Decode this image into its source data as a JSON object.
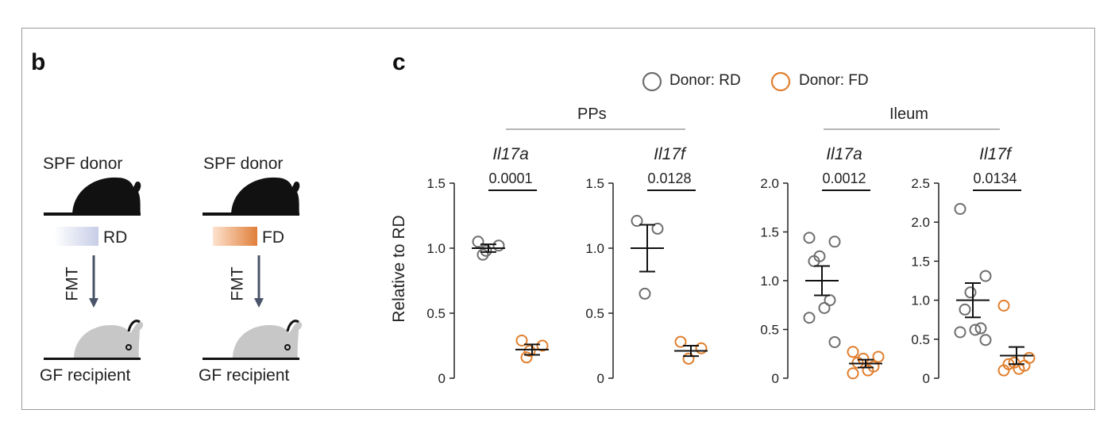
{
  "panel_b": {
    "letter": "b",
    "columns": [
      {
        "donor": "SPF donor",
        "diet": "RD",
        "diet_color": "#c7cde6",
        "transfer": "FMT",
        "recipient": "GF recipient"
      },
      {
        "donor": "SPF donor",
        "diet": "FD",
        "diet_color": "#e07f3a",
        "transfer": "FMT",
        "recipient": "GF recipient"
      }
    ]
  },
  "panel_c": {
    "letter": "c",
    "legend": [
      {
        "label": "Donor: RD",
        "color": "#6e6e6e"
      },
      {
        "label": "Donor: FD",
        "color": "#e07f2e"
      }
    ],
    "groups": [
      {
        "title": "PPs"
      },
      {
        "title": "Ileum"
      }
    ],
    "ylabel": "Relative to RD"
  },
  "chart_data": [
    {
      "type": "scatter",
      "group": "PPs",
      "title": "Il17a",
      "ylabel": "Relative to RD",
      "ylim": [
        0,
        1.5
      ],
      "yticks": [
        "0",
        "0.5",
        "1.0",
        "1.5"
      ],
      "pvalue": "0.0001",
      "series": [
        {
          "name": "Donor: RD",
          "points": [
            1.05,
            1.02,
            0.98,
            0.95
          ],
          "mean": 1.0,
          "sem": 0.03
        },
        {
          "name": "Donor: FD",
          "points": [
            0.29,
            0.25,
            0.21,
            0.16
          ],
          "mean": 0.22,
          "sem": 0.04
        }
      ]
    },
    {
      "type": "scatter",
      "group": "PPs",
      "title": "Il17f",
      "ylim": [
        0,
        1.5
      ],
      "yticks": [
        "0",
        "0.5",
        "1.0",
        "1.5"
      ],
      "pvalue": "0.0128",
      "series": [
        {
          "name": "Donor: RD",
          "points": [
            1.21,
            1.15,
            0.65
          ],
          "mean": 1.0,
          "sem": 0.18
        },
        {
          "name": "Donor: FD",
          "points": [
            0.28,
            0.23,
            0.15
          ],
          "mean": 0.21,
          "sem": 0.04
        }
      ]
    },
    {
      "type": "scatter",
      "group": "Ileum",
      "title": "Il17a",
      "ylim": [
        0,
        2.0
      ],
      "yticks": [
        "0",
        "0.5",
        "1.0",
        "1.5",
        "2.0"
      ],
      "pvalue": "0.0012",
      "series": [
        {
          "name": "Donor: RD",
          "points": [
            1.44,
            1.4,
            1.25,
            1.2,
            0.8,
            0.72,
            0.62,
            0.37
          ],
          "mean": 1.0,
          "sem": 0.15
        },
        {
          "name": "Donor: FD",
          "points": [
            0.27,
            0.22,
            0.2,
            0.16,
            0.12,
            0.08,
            0.05
          ],
          "mean": 0.15,
          "sem": 0.04
        }
      ]
    },
    {
      "type": "scatter",
      "group": "Ileum",
      "title": "Il17f",
      "ylim": [
        0,
        2.5
      ],
      "yticks": [
        "0",
        "0.5",
        "1.0",
        "1.5",
        "2.0",
        "2.5"
      ],
      "pvalue": "0.0134",
      "series": [
        {
          "name": "Donor: RD",
          "points": [
            2.17,
            1.31,
            1.1,
            0.88,
            0.64,
            0.62,
            0.59,
            0.49
          ],
          "mean": 1.0,
          "sem": 0.22
        },
        {
          "name": "Donor: FD",
          "points": [
            0.93,
            0.26,
            0.2,
            0.18,
            0.16,
            0.12,
            0.1
          ],
          "mean": 0.29,
          "sem": 0.11
        }
      ]
    }
  ]
}
